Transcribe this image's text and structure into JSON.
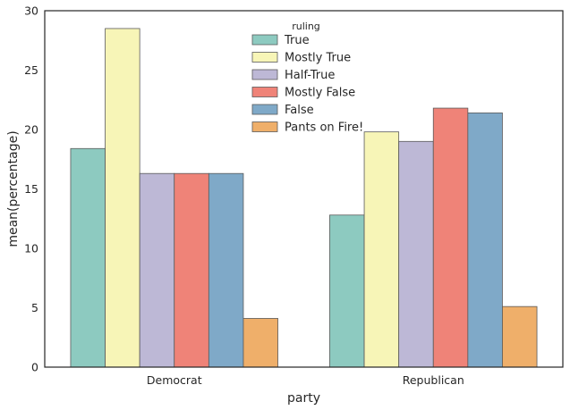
{
  "chart_data": {
    "type": "bar",
    "categories": [
      "Democrat",
      "Republican"
    ],
    "series": [
      {
        "name": "True",
        "values": [
          18.4,
          12.8
        ],
        "color": "#8dcac0"
      },
      {
        "name": "Mostly True",
        "values": [
          28.5,
          19.8
        ],
        "color": "#f7f5b7"
      },
      {
        "name": "Half-True",
        "values": [
          16.3,
          19.0
        ],
        "color": "#bdb8d6"
      },
      {
        "name": "Mostly False",
        "values": [
          16.3,
          21.8
        ],
        "color": "#ef8378"
      },
      {
        "name": "False",
        "values": [
          16.3,
          21.4
        ],
        "color": "#7fa9c8"
      },
      {
        "name": "Pants on Fire!",
        "values": [
          4.1,
          5.1
        ],
        "color": "#efaf6a"
      }
    ],
    "xlabel": "party",
    "ylabel": "mean(percentage)",
    "ylim": [
      0,
      30
    ],
    "yticks": [
      0,
      5,
      10,
      15,
      20,
      25,
      30
    ],
    "legend_title": "ruling",
    "legend_position": "top-center",
    "grid": false
  }
}
